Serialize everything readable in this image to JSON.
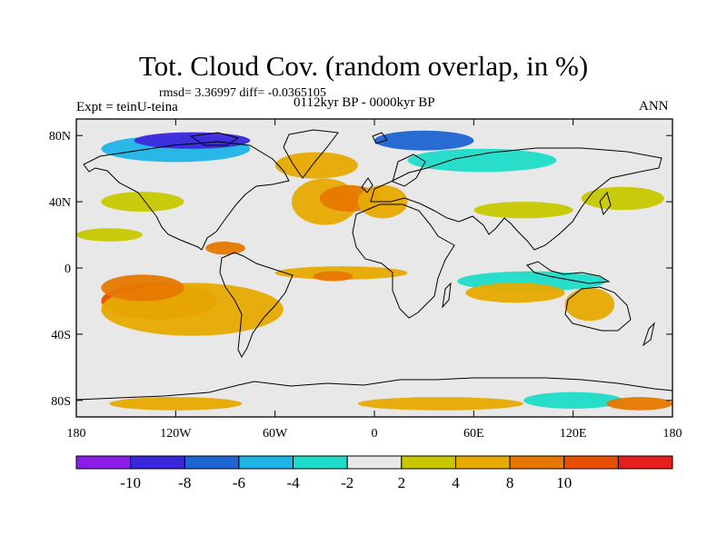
{
  "title": "Tot. Cloud Cov. (random overlap, in %)",
  "stats": "rmsd= 3.36997 diff= -0.0365105",
  "experiment": "Expt = teinU-teina",
  "period": "0112kyr BP - 0000kyr BP",
  "season": "ANN",
  "map": {
    "lon_range": [
      -180,
      180
    ],
    "lat_range": [
      -90,
      90
    ],
    "projection": "cylindrical-equidistant",
    "background_color": "#e8e8e8",
    "lat_ticks": [
      {
        "value": 80,
        "label": "80N"
      },
      {
        "value": 40,
        "label": "40N"
      },
      {
        "value": 0,
        "label": "0"
      },
      {
        "value": -40,
        "label": "40S"
      },
      {
        "value": -80,
        "label": "80S"
      }
    ],
    "lon_ticks": [
      {
        "value": -180,
        "label": "180"
      },
      {
        "value": -120,
        "label": "120W"
      },
      {
        "value": -60,
        "label": "60W"
      },
      {
        "value": 0,
        "label": "0"
      },
      {
        "value": 60,
        "label": "60E"
      },
      {
        "value": 120,
        "label": "120E"
      },
      {
        "value": 180,
        "label": "180"
      }
    ]
  },
  "colorbar": {
    "colors": [
      "#8a1ee6",
      "#3c28dc",
      "#1e64d2",
      "#1eb4e6",
      "#1edcc8",
      "#e8e8e8",
      "#c8c800",
      "#e6aa00",
      "#e67800",
      "#e65000",
      "#e61e1e"
    ],
    "labels": [
      "-10",
      "-8",
      "-6",
      "-4",
      "-2",
      "2",
      "4",
      "8",
      "10"
    ]
  },
  "chart_data": {
    "type": "heatmap",
    "title": "Tot. Cloud Cov. (random overlap, in %)",
    "xlabel": "",
    "ylabel": "",
    "xlim": [
      -180,
      180
    ],
    "ylim": [
      -90,
      90
    ],
    "anomalies": [
      {
        "lon": -130,
        "lat": -20,
        "rx": 35,
        "ry": 11,
        "value": 10
      },
      {
        "lon": -110,
        "lat": -25,
        "rx": 55,
        "ry": 16,
        "value": 4
      },
      {
        "lon": -140,
        "lat": -12,
        "rx": 25,
        "ry": 8,
        "value": 8
      },
      {
        "lon": -30,
        "lat": 40,
        "rx": 20,
        "ry": 14,
        "value": 4
      },
      {
        "lon": -15,
        "lat": 42,
        "rx": 18,
        "ry": 8,
        "value": 8
      },
      {
        "lon": 5,
        "lat": 40,
        "rx": 15,
        "ry": 10,
        "value": 4
      },
      {
        "lon": -35,
        "lat": 62,
        "rx": 25,
        "ry": 8,
        "value": 4
      },
      {
        "lon": -120,
        "lat": 72,
        "rx": 45,
        "ry": 8,
        "value": -6
      },
      {
        "lon": -110,
        "lat": 77,
        "rx": 35,
        "ry": 5,
        "value": -10
      },
      {
        "lon": 30,
        "lat": 77,
        "rx": 30,
        "ry": 6,
        "value": -8
      },
      {
        "lon": 65,
        "lat": 65,
        "rx": 45,
        "ry": 7,
        "value": -4
      },
      {
        "lon": -140,
        "lat": 40,
        "rx": 25,
        "ry": 6,
        "value": 2
      },
      {
        "lon": 150,
        "lat": 42,
        "rx": 25,
        "ry": 7,
        "value": 2
      },
      {
        "lon": 95,
        "lat": -8,
        "rx": 45,
        "ry": 6,
        "value": -4
      },
      {
        "lon": 40,
        "lat": 10,
        "rx": 45,
        "ry": 5,
        "value": -2
      },
      {
        "lon": -140,
        "lat": 6,
        "rx": 40,
        "ry": 4,
        "value": -2
      },
      {
        "lon": -20,
        "lat": -3,
        "rx": 40,
        "ry": 4,
        "value": 4
      },
      {
        "lon": -25,
        "lat": -5,
        "rx": 12,
        "ry": 3,
        "value": 8
      },
      {
        "lon": 130,
        "lat": -22,
        "rx": 15,
        "ry": 10,
        "value": 4
      },
      {
        "lon": 85,
        "lat": -15,
        "rx": 30,
        "ry": 6,
        "value": 4
      },
      {
        "lon": 0,
        "lat": -15,
        "rx": 20,
        "ry": 5,
        "value": -2
      },
      {
        "lon": -90,
        "lat": 12,
        "rx": 12,
        "ry": 4,
        "value": 8
      },
      {
        "lon": -80,
        "lat": 20,
        "rx": 15,
        "ry": 5,
        "value": -2
      },
      {
        "lon": -120,
        "lat": -82,
        "rx": 40,
        "ry": 4,
        "value": 4
      },
      {
        "lon": 40,
        "lat": -82,
        "rx": 50,
        "ry": 4,
        "value": 4
      },
      {
        "lon": 120,
        "lat": -80,
        "rx": 30,
        "ry": 5,
        "value": -4
      },
      {
        "lon": -60,
        "lat": -82,
        "rx": 20,
        "ry": 4,
        "value": -2
      },
      {
        "lon": 160,
        "lat": -82,
        "rx": 20,
        "ry": 4,
        "value": 8
      },
      {
        "lon": 60,
        "lat": 24,
        "rx": 20,
        "ry": 5,
        "value": -2
      },
      {
        "lon": 110,
        "lat": 20,
        "rx": 20,
        "ry": 7,
        "value": -2
      },
      {
        "lon": 90,
        "lat": 35,
        "rx": 30,
        "ry": 5,
        "value": 2
      },
      {
        "lon": 170,
        "lat": 25,
        "rx": 15,
        "ry": 5,
        "value": -2
      },
      {
        "lon": -160,
        "lat": 20,
        "rx": 20,
        "ry": 4,
        "value": 2
      },
      {
        "lon": -100,
        "lat": 35,
        "rx": 20,
        "ry": 5,
        "value": -2
      }
    ]
  }
}
